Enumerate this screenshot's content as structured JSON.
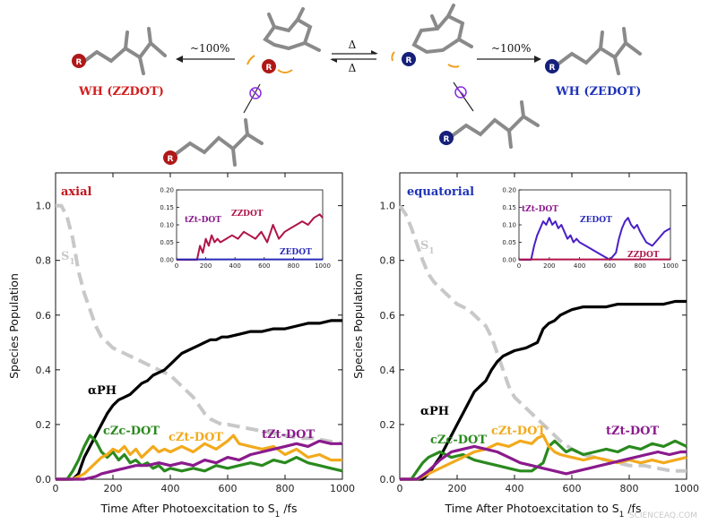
{
  "scheme": {
    "left_product": "WH (ZZDOT)",
    "right_product": "WH (ZEDOT)",
    "left_arrow": "~100%",
    "right_arrow": "~100%",
    "equilibrium_top": "Δ",
    "equilibrium_bottom": "Δ",
    "substituent": "R",
    "colors": {
      "red": "#d21f1f",
      "blue": "#1f33b8",
      "purple": "#8a2be2",
      "orange": "#f0a020"
    }
  },
  "watermark": "SCIENCEAQ.COM",
  "chart_data": [
    {
      "type": "line",
      "panel_label": "axial",
      "ylabel": "Species Population",
      "xlabel": "Time After Photoexcitation to S",
      "xlabel_sub": "1",
      "xlabel_unit": "/fs",
      "xlim": [
        0,
        1000
      ],
      "ylim": [
        0,
        1.12
      ],
      "xticks": [
        0,
        200,
        400,
        600,
        800,
        1000
      ],
      "yticks": [
        0.0,
        0.2,
        0.4,
        0.6,
        0.8,
        1.0
      ],
      "annotations": {
        "s1": "S",
        "s1_sub": "1",
        "aph": "αPH",
        "czc": "cZc-DOT",
        "czt": "cZt-DOT",
        "tzt": "tZt-DOT"
      },
      "series": [
        {
          "key": "S1",
          "color": "#c8c8c8",
          "dash": true,
          "x": [
            0,
            20,
            40,
            60,
            80,
            100,
            120,
            140,
            160,
            180,
            200,
            220,
            240,
            260,
            280,
            300,
            320,
            340,
            360,
            380,
            400,
            420,
            440,
            460,
            480,
            500,
            520,
            540,
            560,
            580,
            600,
            650,
            700,
            750,
            800,
            850,
            900,
            950,
            1000
          ],
          "y": [
            1.0,
            1.0,
            0.96,
            0.88,
            0.76,
            0.68,
            0.62,
            0.56,
            0.52,
            0.5,
            0.48,
            0.47,
            0.46,
            0.45,
            0.44,
            0.43,
            0.42,
            0.41,
            0.4,
            0.39,
            0.38,
            0.36,
            0.34,
            0.32,
            0.3,
            0.27,
            0.24,
            0.22,
            0.21,
            0.2,
            0.2,
            0.19,
            0.18,
            0.17,
            0.16,
            0.15,
            0.15,
            0.14,
            0.13
          ]
        },
        {
          "key": "aPH",
          "color": "#000000",
          "dash": false,
          "x": [
            0,
            60,
            80,
            90,
            100,
            110,
            120,
            140,
            160,
            180,
            200,
            220,
            240,
            260,
            280,
            300,
            320,
            340,
            360,
            380,
            400,
            420,
            440,
            460,
            480,
            500,
            520,
            540,
            560,
            580,
            600,
            640,
            680,
            720,
            760,
            800,
            840,
            880,
            920,
            960,
            1000
          ],
          "y": [
            0.0,
            0.0,
            0.02,
            0.05,
            0.08,
            0.1,
            0.12,
            0.16,
            0.2,
            0.24,
            0.27,
            0.29,
            0.3,
            0.31,
            0.33,
            0.35,
            0.36,
            0.38,
            0.39,
            0.4,
            0.42,
            0.44,
            0.46,
            0.47,
            0.48,
            0.49,
            0.5,
            0.51,
            0.51,
            0.52,
            0.52,
            0.53,
            0.54,
            0.54,
            0.55,
            0.55,
            0.56,
            0.57,
            0.57,
            0.58,
            0.58
          ]
        },
        {
          "key": "cZc-DOT",
          "color": "#2a8a1e",
          "dash": false,
          "x": [
            0,
            40,
            60,
            80,
            100,
            120,
            140,
            160,
            180,
            200,
            220,
            240,
            260,
            280,
            300,
            320,
            340,
            360,
            380,
            400,
            440,
            480,
            520,
            560,
            600,
            640,
            680,
            720,
            760,
            800,
            840,
            880,
            920,
            960,
            1000
          ],
          "y": [
            0.0,
            0.0,
            0.03,
            0.07,
            0.12,
            0.16,
            0.14,
            0.1,
            0.08,
            0.1,
            0.07,
            0.09,
            0.06,
            0.07,
            0.05,
            0.06,
            0.04,
            0.05,
            0.03,
            0.04,
            0.03,
            0.04,
            0.03,
            0.05,
            0.04,
            0.05,
            0.06,
            0.05,
            0.07,
            0.06,
            0.08,
            0.06,
            0.05,
            0.04,
            0.03
          ]
        },
        {
          "key": "cZt-DOT",
          "color": "#f2aa1c",
          "dash": false,
          "x": [
            0,
            60,
            80,
            100,
            120,
            140,
            160,
            180,
            200,
            220,
            240,
            260,
            280,
            300,
            320,
            340,
            360,
            380,
            400,
            440,
            480,
            520,
            560,
            600,
            620,
            640,
            680,
            720,
            760,
            800,
            840,
            880,
            920,
            960,
            1000
          ],
          "y": [
            0.0,
            0.0,
            0.01,
            0.02,
            0.04,
            0.06,
            0.08,
            0.09,
            0.11,
            0.1,
            0.12,
            0.09,
            0.11,
            0.08,
            0.1,
            0.12,
            0.1,
            0.11,
            0.1,
            0.12,
            0.1,
            0.13,
            0.11,
            0.14,
            0.16,
            0.13,
            0.12,
            0.11,
            0.12,
            0.09,
            0.11,
            0.08,
            0.09,
            0.07,
            0.07
          ]
        },
        {
          "key": "tZt-DOT",
          "color": "#8a1a8c",
          "dash": false,
          "x": [
            0,
            100,
            140,
            160,
            200,
            240,
            280,
            320,
            360,
            400,
            440,
            480,
            520,
            560,
            600,
            640,
            680,
            720,
            760,
            800,
            840,
            880,
            920,
            960,
            1000
          ],
          "y": [
            0.0,
            0.0,
            0.01,
            0.02,
            0.03,
            0.04,
            0.05,
            0.05,
            0.06,
            0.05,
            0.06,
            0.05,
            0.07,
            0.06,
            0.08,
            0.07,
            0.09,
            0.1,
            0.11,
            0.12,
            0.13,
            0.12,
            0.14,
            0.13,
            0.13
          ]
        }
      ],
      "inset": {
        "xlim": [
          0,
          1000
        ],
        "ylim": [
          0,
          0.2
        ],
        "xticks": [
          0,
          200,
          400,
          600,
          800,
          1000
        ],
        "yticks": [
          0.0,
          0.05,
          0.1,
          0.15,
          0.2
        ],
        "labels": {
          "a": "tZt-DOT",
          "b": "ZZDOT",
          "c": "ZEDOT"
        },
        "series": [
          {
            "key": "ZZDOT",
            "color": "#b0144a",
            "x": [
              0,
              140,
              160,
              180,
              200,
              220,
              240,
              260,
              280,
              300,
              340,
              380,
              420,
              460,
              500,
              540,
              580,
              620,
              660,
              700,
              740,
              780,
              820,
              860,
              900,
              940,
              980,
              1000
            ],
            "y": [
              0.0,
              0.0,
              0.04,
              0.02,
              0.06,
              0.04,
              0.07,
              0.05,
              0.06,
              0.05,
              0.06,
              0.07,
              0.06,
              0.08,
              0.07,
              0.06,
              0.08,
              0.05,
              0.1,
              0.06,
              0.08,
              0.09,
              0.1,
              0.11,
              0.1,
              0.12,
              0.13,
              0.12
            ]
          },
          {
            "key": "ZEDOT",
            "color": "#2a2ab8",
            "x": [
              0,
              1000
            ],
            "y": [
              0.001,
              0.001
            ]
          }
        ]
      }
    },
    {
      "type": "line",
      "panel_label": "equatorial",
      "ylabel": "Species Population",
      "xlabel": "Time After Photoexcitation to S",
      "xlabel_sub": "1",
      "xlabel_unit": "/fs",
      "xlim": [
        0,
        1000
      ],
      "ylim": [
        0,
        1.12
      ],
      "xticks": [
        0,
        200,
        400,
        600,
        800,
        1000
      ],
      "yticks": [
        0.0,
        0.2,
        0.4,
        0.6,
        0.8,
        1.0
      ],
      "annotations": {
        "s1": "S",
        "s1_sub": "1",
        "aph": "αPH",
        "czc": "cZc-DOT",
        "czt": "cZt-DOT",
        "tzt": "tZt-DOT"
      },
      "series": [
        {
          "key": "S1",
          "color": "#c8c8c8",
          "dash": true,
          "x": [
            0,
            20,
            40,
            60,
            80,
            100,
            120,
            140,
            160,
            180,
            200,
            220,
            240,
            260,
            280,
            300,
            320,
            340,
            360,
            380,
            400,
            440,
            480,
            520,
            560,
            600,
            640,
            680,
            720,
            760,
            800,
            850,
            900,
            950,
            1000
          ],
          "y": [
            1.0,
            0.97,
            0.92,
            0.86,
            0.8,
            0.75,
            0.72,
            0.7,
            0.68,
            0.66,
            0.64,
            0.63,
            0.62,
            0.6,
            0.58,
            0.56,
            0.52,
            0.46,
            0.4,
            0.34,
            0.3,
            0.26,
            0.22,
            0.18,
            0.14,
            0.11,
            0.09,
            0.08,
            0.07,
            0.06,
            0.05,
            0.05,
            0.04,
            0.03,
            0.03
          ]
        },
        {
          "key": "aPH",
          "color": "#000000",
          "dash": false,
          "x": [
            0,
            80,
            100,
            120,
            140,
            160,
            180,
            200,
            220,
            240,
            260,
            280,
            300,
            320,
            340,
            360,
            380,
            400,
            440,
            480,
            500,
            520,
            540,
            560,
            580,
            600,
            640,
            680,
            720,
            760,
            800,
            840,
            880,
            920,
            960,
            1000
          ],
          "y": [
            0.0,
            0.0,
            0.02,
            0.05,
            0.08,
            0.12,
            0.16,
            0.2,
            0.24,
            0.28,
            0.32,
            0.34,
            0.36,
            0.4,
            0.43,
            0.45,
            0.46,
            0.47,
            0.48,
            0.5,
            0.55,
            0.57,
            0.58,
            0.6,
            0.61,
            0.62,
            0.63,
            0.63,
            0.63,
            0.64,
            0.64,
            0.64,
            0.64,
            0.64,
            0.65,
            0.65
          ]
        },
        {
          "key": "cZc-DOT",
          "color": "#2a8a1e",
          "dash": false,
          "x": [
            0,
            40,
            60,
            80,
            100,
            140,
            180,
            220,
            260,
            300,
            340,
            380,
            420,
            460,
            500,
            520,
            540,
            560,
            580,
            600,
            640,
            680,
            720,
            760,
            800,
            840,
            880,
            920,
            960,
            1000
          ],
          "y": [
            0.0,
            0.0,
            0.03,
            0.06,
            0.08,
            0.1,
            0.08,
            0.09,
            0.07,
            0.06,
            0.05,
            0.04,
            0.03,
            0.03,
            0.06,
            0.12,
            0.14,
            0.12,
            0.1,
            0.11,
            0.09,
            0.1,
            0.11,
            0.1,
            0.12,
            0.11,
            0.13,
            0.12,
            0.14,
            0.12
          ]
        },
        {
          "key": "cZt-DOT",
          "color": "#f2aa1c",
          "dash": false,
          "x": [
            0,
            60,
            100,
            140,
            180,
            220,
            260,
            300,
            340,
            380,
            420,
            460,
            480,
            500,
            520,
            540,
            560,
            600,
            640,
            680,
            720,
            760,
            800,
            840,
            880,
            920,
            960,
            1000
          ],
          "y": [
            0.0,
            0.0,
            0.02,
            0.04,
            0.06,
            0.08,
            0.1,
            0.11,
            0.13,
            0.12,
            0.14,
            0.13,
            0.15,
            0.16,
            0.12,
            0.1,
            0.09,
            0.08,
            0.07,
            0.08,
            0.07,
            0.06,
            0.07,
            0.06,
            0.07,
            0.06,
            0.07,
            0.08
          ]
        },
        {
          "key": "tZt-DOT",
          "color": "#8a1a8c",
          "dash": false,
          "x": [
            0,
            60,
            100,
            140,
            180,
            220,
            260,
            300,
            340,
            380,
            420,
            460,
            500,
            540,
            580,
            620,
            660,
            700,
            740,
            780,
            820,
            860,
            900,
            940,
            980,
            1000
          ],
          "y": [
            0.0,
            0.0,
            0.03,
            0.07,
            0.1,
            0.11,
            0.12,
            0.11,
            0.1,
            0.08,
            0.06,
            0.05,
            0.04,
            0.03,
            0.02,
            0.03,
            0.04,
            0.05,
            0.06,
            0.07,
            0.08,
            0.09,
            0.1,
            0.09,
            0.1,
            0.1
          ]
        }
      ],
      "inset": {
        "xlim": [
          0,
          1000
        ],
        "ylim": [
          0,
          0.2
        ],
        "xticks": [
          0,
          200,
          400,
          600,
          800,
          1000
        ],
        "yticks": [
          0.0,
          0.05,
          0.1,
          0.15,
          0.2
        ],
        "labels": {
          "a": "tZt-DOT",
          "b": "ZEDOT",
          "c": "ZZDOT"
        },
        "series": [
          {
            "key": "ZEDOT",
            "color": "#4a1fc8",
            "x": [
              0,
              80,
              100,
              120,
              140,
              160,
              180,
              200,
              220,
              240,
              260,
              280,
              300,
              320,
              340,
              360,
              380,
              400,
              440,
              480,
              520,
              560,
              600,
              640,
              660,
              680,
              700,
              720,
              740,
              760,
              780,
              800,
              840,
              880,
              920,
              960,
              1000
            ],
            "y": [
              0.0,
              0.0,
              0.04,
              0.07,
              0.09,
              0.11,
              0.1,
              0.12,
              0.1,
              0.11,
              0.09,
              0.1,
              0.08,
              0.06,
              0.07,
              0.05,
              0.06,
              0.05,
              0.04,
              0.03,
              0.02,
              0.01,
              0.0,
              0.02,
              0.06,
              0.09,
              0.11,
              0.12,
              0.1,
              0.09,
              0.1,
              0.08,
              0.05,
              0.04,
              0.06,
              0.08,
              0.09
            ]
          },
          {
            "key": "ZZDOT",
            "color": "#b0144a",
            "x": [
              0,
              1000
            ],
            "y": [
              0.001,
              0.001
            ]
          }
        ]
      }
    }
  ]
}
